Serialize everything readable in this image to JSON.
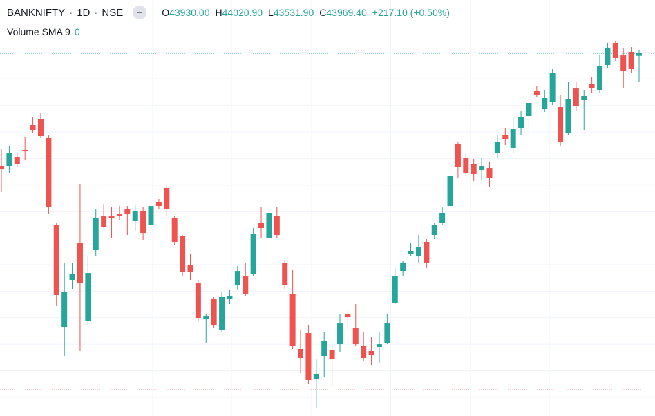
{
  "header": {
    "symbol": "BANKNIFTY",
    "interval": "1D",
    "exchange": "NSE",
    "ohlc": [
      {
        "label": "O",
        "value": "43930.00"
      },
      {
        "label": "H",
        "value": "44020.90"
      },
      {
        "label": "L",
        "value": "43531.90"
      },
      {
        "label": "C",
        "value": "43969.40"
      }
    ],
    "change": "+217.10 (+0.50%)",
    "indicator": {
      "name": "Volume SMA 9",
      "value": "0"
    }
  },
  "chart_data": {
    "type": "candlestick",
    "up_color": "#26a69a",
    "down_color": "#ef5350",
    "ylim": [
      38368,
      44791
    ],
    "open": [
      42230,
      42230,
      42369,
      42476,
      42860,
      42956,
      42668,
      41323,
      39744,
      40470,
      41035,
      39840,
      40928,
      41462,
      41451,
      41483,
      41569,
      41377,
      41537,
      41323,
      41675,
      41889,
      41430,
      41142,
      40694,
      40416,
      39861,
      40182,
      39691,
      40171,
      40384,
      40523,
      40566,
      41355,
      41110,
      41462,
      40737,
      40256,
      39403,
      39648,
      38933,
      39296,
      39392,
      39477,
      39947,
      39733,
      39456,
      39371,
      39435,
      39499,
      40118,
      40608,
      40875,
      40843,
      41057,
      41163,
      41355,
      41611,
      42561,
      42358,
      42252,
      42166,
      42198,
      42422,
      42700,
      42508,
      42817,
      42998,
      43393,
      43105,
      43212,
      43137,
      42742,
      43425,
      43244,
      43500,
      43404,
      43788,
      44130,
      43937,
      43991,
      43930
    ],
    "high": [
      42497,
      42529,
      42422,
      42678,
      42977,
      43052,
      42710,
      41355,
      40737,
      40737,
      41953,
      40843,
      41569,
      41643,
      41590,
      41611,
      41611,
      41622,
      41590,
      41633,
      41718,
      41931,
      41462,
      41163,
      40875,
      40470,
      39936,
      40203,
      40288,
      40310,
      40683,
      40737,
      41270,
      41590,
      41590,
      41590,
      40779,
      40630,
      39691,
      39776,
      39243,
      39669,
      39456,
      39936,
      39990,
      40096,
      39669,
      39584,
      39669,
      39936,
      40651,
      40758,
      41035,
      41163,
      41099,
      41355,
      41590,
      42124,
      42593,
      42422,
      42337,
      42358,
      42284,
      42700,
      42817,
      42977,
      43084,
      43297,
      43468,
      43404,
      43724,
      43319,
      43532,
      43532,
      43404,
      43596,
      43937,
      44130,
      44151,
      44044,
      44065,
      44020.9
    ],
    "low": [
      41825,
      42124,
      42209,
      42316,
      42742,
      42657,
      41483,
      40064,
      39296,
      40331,
      39371,
      39776,
      40843,
      41270,
      41110,
      41398,
      41163,
      41217,
      41089,
      41163,
      41569,
      41462,
      41003,
      40523,
      40470,
      39829,
      39488,
      39723,
      39669,
      40096,
      40310,
      40224,
      40523,
      41110,
      41078,
      41110,
      40331,
      39403,
      39029,
      38869,
      38496,
      38976,
      38816,
      39349,
      39712,
      39456,
      39221,
      39157,
      39179,
      39477,
      40096,
      40523,
      40843,
      40737,
      40651,
      41099,
      41323,
      41483,
      42038,
      42070,
      41995,
      42017,
      41910,
      42358,
      42550,
      42422,
      42710,
      42721,
      43297,
      43062,
      43169,
      42529,
      42710,
      43084,
      42785,
      43351,
      43351,
      43745,
      43852,
      43425,
      43660,
      43531.9
    ],
    "close": [
      42177,
      42422,
      42252,
      42454,
      42785,
      42689,
      41590,
      40235,
      40288,
      40566,
      40416,
      40576,
      41430,
      41291,
      41419,
      41462,
      41483,
      41537,
      41195,
      41611,
      41611,
      41569,
      41057,
      40598,
      40587,
      39883,
      39904,
      39776,
      40203,
      40224,
      40608,
      40256,
      41185,
      41270,
      41505,
      41163,
      40395,
      39456,
      39264,
      38923,
      39019,
      39520,
      39243,
      39797,
      39893,
      39477,
      39264,
      39307,
      39477,
      39797,
      40523,
      40737,
      40918,
      40982,
      40737,
      41313,
      41505,
      42081,
      42209,
      42124,
      42102,
      42230,
      42049,
      42593,
      42646,
      42806,
      42977,
      43201,
      43329,
      43276,
      43660,
      42604,
      43265,
      43148,
      43308,
      43436,
      43777,
      44055,
      43895,
      43692,
      43724,
      43969.4
    ]
  }
}
